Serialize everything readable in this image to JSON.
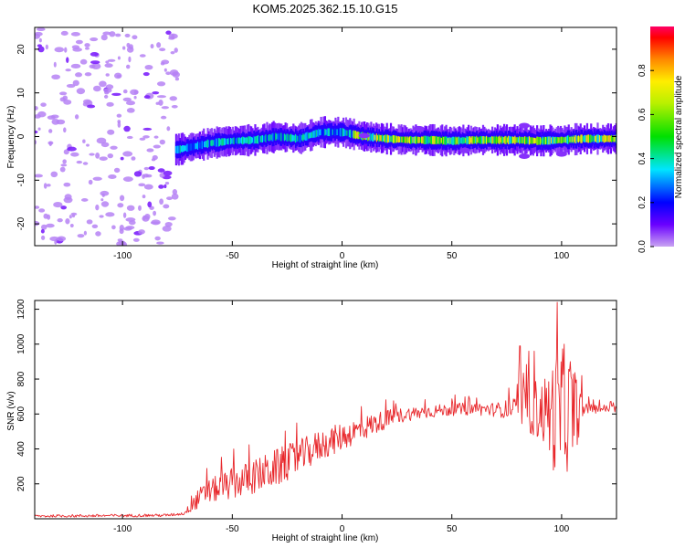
{
  "title": "KOM5.2025.362.15.10.G15",
  "colors": {
    "snr_line": "#e8282c",
    "axis": "#000000",
    "background": "#ffffff"
  },
  "chart_data": [
    {
      "type": "heatmap",
      "name": "spectrogram",
      "xlabel": "Height of straight line (km)",
      "ylabel": "Frequency (Hz)",
      "xlim": [
        -140,
        125
      ],
      "ylim": [
        -25,
        25
      ],
      "xticks": [
        -100,
        -50,
        0,
        50,
        100
      ],
      "yticks": [
        -20,
        -10,
        0,
        10,
        20
      ],
      "colorbar": {
        "label": "Normalized spectral amplitude",
        "range": [
          0.0,
          1.0
        ],
        "ticks": [
          "0.0",
          "0.2",
          "0.4",
          "0.6",
          "0.8"
        ]
      },
      "track_center_hz": [
        [
          -75,
          -3.0
        ],
        [
          -70,
          -2.5
        ],
        [
          -60,
          -1.5
        ],
        [
          -50,
          -1.0
        ],
        [
          -40,
          -0.8
        ],
        [
          -30,
          0.0
        ],
        [
          -20,
          -0.5
        ],
        [
          -10,
          1.0
        ],
        [
          0,
          1.0
        ],
        [
          10,
          0.0
        ],
        [
          20,
          -0.5
        ],
        [
          30,
          -0.8
        ],
        [
          40,
          -0.8
        ],
        [
          50,
          -1.0
        ],
        [
          60,
          -0.8
        ],
        [
          70,
          -0.8
        ],
        [
          80,
          -0.8
        ],
        [
          90,
          -1.0
        ],
        [
          100,
          -0.8
        ],
        [
          110,
          -0.5
        ],
        [
          125,
          -0.5
        ]
      ],
      "noise_region_km": [
        -140,
        -75
      ]
    },
    {
      "type": "line",
      "name": "snr",
      "xlabel": "Height of straight line (km)",
      "ylabel": "SNR (v/v)",
      "xlim": [
        -140,
        125
      ],
      "ylim": [
        0,
        1250
      ],
      "xticks": [
        -100,
        -50,
        0,
        50,
        100
      ],
      "yticks": [
        200,
        400,
        600,
        800,
        1000,
        1200
      ],
      "trend": [
        [
          -140,
          15
        ],
        [
          -80,
          20
        ],
        [
          -72,
          30
        ],
        [
          -65,
          120
        ],
        [
          -60,
          160
        ],
        [
          -50,
          200
        ],
        [
          -40,
          240
        ],
        [
          -30,
          290
        ],
        [
          -20,
          350
        ],
        [
          -10,
          420
        ],
        [
          0,
          470
        ],
        [
          10,
          520
        ],
        [
          20,
          570
        ],
        [
          30,
          600
        ],
        [
          40,
          615
        ],
        [
          50,
          625
        ],
        [
          60,
          630
        ],
        [
          70,
          625
        ],
        [
          80,
          630
        ],
        [
          85,
          640
        ],
        [
          90,
          620
        ],
        [
          95,
          600
        ],
        [
          100,
          600
        ],
        [
          105,
          610
        ],
        [
          110,
          630
        ],
        [
          125,
          630
        ]
      ],
      "noise_amp": [
        [
          -140,
          8
        ],
        [
          -72,
          8
        ],
        [
          -65,
          60
        ],
        [
          -50,
          90
        ],
        [
          -30,
          110
        ],
        [
          -10,
          90
        ],
        [
          10,
          70
        ],
        [
          30,
          40
        ],
        [
          50,
          35
        ],
        [
          70,
          40
        ],
        [
          78,
          60
        ],
        [
          85,
          150
        ],
        [
          92,
          200
        ],
        [
          97,
          350
        ],
        [
          100,
          380
        ],
        [
          105,
          300
        ],
        [
          108,
          150
        ],
        [
          110,
          30
        ],
        [
          125,
          20
        ]
      ],
      "peaks": [
        [
          81,
          990
        ],
        [
          98,
          1240
        ],
        [
          85,
          960
        ],
        [
          101,
          1000
        ],
        [
          104,
          900
        ]
      ]
    }
  ]
}
